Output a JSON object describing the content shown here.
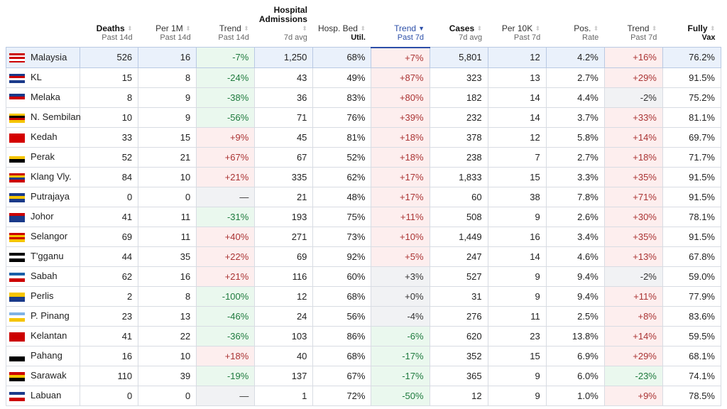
{
  "headers": [
    {
      "title": "",
      "sub": ""
    },
    {
      "title": "Deaths",
      "sub": "Past 14d",
      "bold": true
    },
    {
      "title": "Per 1M",
      "sub": "Past 14d"
    },
    {
      "title": "Trend",
      "sub": "Past 14d"
    },
    {
      "title": "Hospital Admissions",
      "sub": "7d avg",
      "bold": true
    },
    {
      "title": "Hosp. Bed",
      "sub": "Util.",
      "subbold": true
    },
    {
      "title": "Trend",
      "sub": "Past 7d",
      "active": true
    },
    {
      "title": "Cases",
      "sub": "7d avg",
      "bold": true
    },
    {
      "title": "Per 10K",
      "sub": "Past 7d"
    },
    {
      "title": "Pos.",
      "sub": "Rate"
    },
    {
      "title": "Trend",
      "sub": "Past 7d"
    },
    {
      "title": "Fully",
      "sub": "Vax",
      "bold": true,
      "subbold": true
    }
  ],
  "trend_columns": [
    3,
    6,
    10
  ],
  "colors": {
    "up_bg": "#fdeeee",
    "down_bg": "#eaf8ee",
    "flat_bg": "#f1f2f4",
    "active": "#2b4ea8"
  },
  "rows": [
    {
      "name": "Malaysia",
      "flag": [
        "#cc0000",
        "#ffffff",
        "#cc0000",
        "#ffffff",
        "#cc0000"
      ],
      "cells": [
        "526",
        "16",
        "-7%",
        "1,250",
        "68%",
        "+7%",
        "5,801",
        "12",
        "4.2%",
        "+16%",
        "76.2%"
      ]
    },
    {
      "name": "KL",
      "flag": [
        "#1a3a8a",
        "#cc0000",
        "#ffffff",
        "#1a3a8a"
      ],
      "cells": [
        "15",
        "8",
        "-24%",
        "43",
        "49%",
        "+87%",
        "323",
        "13",
        "2.7%",
        "+29%",
        "91.5%"
      ]
    },
    {
      "name": "Melaka",
      "flag": [
        "#1a3a8a",
        "#cc0000",
        "#ffffff"
      ],
      "cells": [
        "8",
        "9",
        "-38%",
        "36",
        "83%",
        "+80%",
        "182",
        "14",
        "4.4%",
        "-2%",
        "75.2%"
      ]
    },
    {
      "name": "N. Sembilan",
      "flag": [
        "#f5c400",
        "#000000",
        "#cc0000",
        "#f5c400"
      ],
      "cells": [
        "10",
        "9",
        "-56%",
        "71",
        "76%",
        "+39%",
        "232",
        "14",
        "3.7%",
        "+33%",
        "81.1%"
      ]
    },
    {
      "name": "Kedah",
      "flag": [
        "#d40000",
        "#d40000",
        "#d40000"
      ],
      "cells": [
        "33",
        "15",
        "+9%",
        "45",
        "81%",
        "+18%",
        "378",
        "12",
        "5.8%",
        "+14%",
        "69.7%"
      ]
    },
    {
      "name": "Perak",
      "flag": [
        "#ffffff",
        "#f5c400",
        "#000000"
      ],
      "cells": [
        "52",
        "21",
        "+67%",
        "67",
        "52%",
        "+18%",
        "238",
        "7",
        "2.7%",
        "+18%",
        "71.7%"
      ]
    },
    {
      "name": "Klang Vly.",
      "flag": [
        "#cc0000",
        "#f5c400",
        "#1a3a8a",
        "#cc0000"
      ],
      "cells": [
        "84",
        "10",
        "+21%",
        "335",
        "62%",
        "+17%",
        "1,833",
        "15",
        "3.3%",
        "+35%",
        "91.5%"
      ]
    },
    {
      "name": "Putrajaya",
      "flag": [
        "#1a3a8a",
        "#f5c400",
        "#1a3a8a"
      ],
      "cells": [
        "0",
        "0",
        "—",
        "21",
        "48%",
        "+17%",
        "60",
        "38",
        "7.8%",
        "+71%",
        "91.5%"
      ]
    },
    {
      "name": "Johor",
      "flag": [
        "#cc0000",
        "#1a3a8a",
        "#1a3a8a"
      ],
      "cells": [
        "41",
        "11",
        "-31%",
        "193",
        "75%",
        "+11%",
        "508",
        "9",
        "2.6%",
        "+30%",
        "78.1%"
      ]
    },
    {
      "name": "Selangor",
      "flag": [
        "#cc0000",
        "#f5c400",
        "#cc0000",
        "#f5c400"
      ],
      "cells": [
        "69",
        "11",
        "+40%",
        "271",
        "73%",
        "+10%",
        "1,449",
        "16",
        "3.4%",
        "+35%",
        "91.5%"
      ]
    },
    {
      "name": "T'gganu",
      "flag": [
        "#000000",
        "#ffffff",
        "#000000"
      ],
      "cells": [
        "44",
        "35",
        "+22%",
        "69",
        "92%",
        "+5%",
        "247",
        "14",
        "4.6%",
        "+13%",
        "67.8%"
      ]
    },
    {
      "name": "Sabah",
      "flag": [
        "#1a5fa8",
        "#ffffff",
        "#cc0000"
      ],
      "cells": [
        "62",
        "16",
        "+21%",
        "116",
        "60%",
        "+3%",
        "527",
        "9",
        "9.4%",
        "-2%",
        "59.0%"
      ]
    },
    {
      "name": "Perlis",
      "flag": [
        "#f5c400",
        "#1a3a8a"
      ],
      "cells": [
        "2",
        "8",
        "-100%",
        "12",
        "68%",
        "+0%",
        "31",
        "9",
        "9.4%",
        "+11%",
        "77.9%"
      ]
    },
    {
      "name": "P. Pinang",
      "flag": [
        "#7fb2e5",
        "#ffffff",
        "#f5c400"
      ],
      "cells": [
        "23",
        "13",
        "-46%",
        "24",
        "56%",
        "-4%",
        "276",
        "11",
        "2.5%",
        "+8%",
        "83.6%"
      ]
    },
    {
      "name": "Kelantan",
      "flag": [
        "#cc0000",
        "#cc0000",
        "#cc0000"
      ],
      "cells": [
        "41",
        "22",
        "-36%",
        "103",
        "86%",
        "-6%",
        "620",
        "23",
        "13.8%",
        "+14%",
        "59.5%"
      ]
    },
    {
      "name": "Pahang",
      "flag": [
        "#ffffff",
        "#000000"
      ],
      "cells": [
        "16",
        "10",
        "+18%",
        "40",
        "68%",
        "-17%",
        "352",
        "15",
        "6.9%",
        "+29%",
        "68.1%"
      ]
    },
    {
      "name": "Sarawak",
      "flag": [
        "#cc0000",
        "#f5c400",
        "#000000"
      ],
      "cells": [
        "110",
        "39",
        "-19%",
        "137",
        "67%",
        "-17%",
        "365",
        "9",
        "6.0%",
        "-23%",
        "74.1%"
      ]
    },
    {
      "name": "Labuan",
      "flag": [
        "#1a3a8a",
        "#ffffff",
        "#cc0000"
      ],
      "cells": [
        "0",
        "0",
        "—",
        "1",
        "72%",
        "-50%",
        "12",
        "9",
        "1.0%",
        "+9%",
        "78.5%"
      ]
    }
  ]
}
